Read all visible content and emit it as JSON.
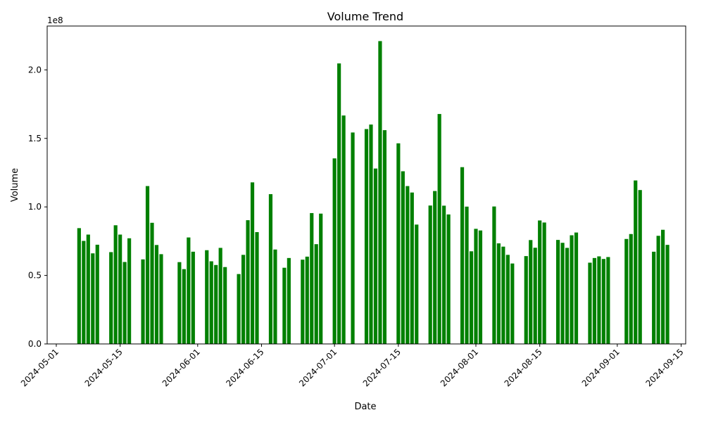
{
  "chart_data": {
    "type": "bar",
    "title": "Volume Trend",
    "xlabel": "Date",
    "ylabel": "Volume",
    "offset_label": "1e8",
    "bar_color": "#008000",
    "ylim": [
      0,
      232000000
    ],
    "xlim": [
      "2024-04-29",
      "2024-09-16"
    ],
    "grid": false,
    "legend": "none",
    "x_ticks": [
      "2024-05-01",
      "2024-05-15",
      "2024-06-01",
      "2024-06-15",
      "2024-07-01",
      "2024-07-15",
      "2024-08-01",
      "2024-08-15",
      "2024-09-01",
      "2024-09-15"
    ],
    "y_ticks": [
      {
        "value": 0,
        "label": "0.0"
      },
      {
        "value": 50000000,
        "label": "0.5"
      },
      {
        "value": 100000000,
        "label": "1.0"
      },
      {
        "value": 150000000,
        "label": "1.5"
      },
      {
        "value": 200000000,
        "label": "2.0"
      }
    ],
    "series": [
      {
        "x": [
          "2024-05-06",
          "2024-05-07",
          "2024-05-08",
          "2024-05-09",
          "2024-05-10",
          "2024-05-13",
          "2024-05-14",
          "2024-05-15",
          "2024-05-16",
          "2024-05-17",
          "2024-05-20",
          "2024-05-21",
          "2024-05-22",
          "2024-05-23",
          "2024-05-24",
          "2024-05-28",
          "2024-05-29",
          "2024-05-30",
          "2024-05-31",
          "2024-06-03",
          "2024-06-04",
          "2024-06-05",
          "2024-06-06",
          "2024-06-07",
          "2024-06-10",
          "2024-06-11",
          "2024-06-12",
          "2024-06-13",
          "2024-06-14",
          "2024-06-17",
          "2024-06-18",
          "2024-06-20",
          "2024-06-21",
          "2024-06-24",
          "2024-06-25",
          "2024-06-26",
          "2024-06-27",
          "2024-06-28",
          "2024-07-01",
          "2024-07-02",
          "2024-07-03",
          "2024-07-05",
          "2024-07-08",
          "2024-07-09",
          "2024-07-10",
          "2024-07-11",
          "2024-07-12",
          "2024-07-15",
          "2024-07-16",
          "2024-07-17",
          "2024-07-18",
          "2024-07-19",
          "2024-07-22",
          "2024-07-23",
          "2024-07-24",
          "2024-07-25",
          "2024-07-26",
          "2024-07-29",
          "2024-07-30",
          "2024-07-31",
          "2024-08-01",
          "2024-08-02",
          "2024-08-05",
          "2024-08-06",
          "2024-08-07",
          "2024-08-08",
          "2024-08-09",
          "2024-08-12",
          "2024-08-13",
          "2024-08-14",
          "2024-08-15",
          "2024-08-16",
          "2024-08-19",
          "2024-08-20",
          "2024-08-21",
          "2024-08-22",
          "2024-08-23",
          "2024-08-26",
          "2024-08-27",
          "2024-08-28",
          "2024-08-29",
          "2024-08-30",
          "2024-09-03",
          "2024-09-04",
          "2024-09-05",
          "2024-09-06",
          "2024-09-09",
          "2024-09-10",
          "2024-09-11",
          "2024-09-12"
        ],
        "values": [
          84500000,
          75200000,
          79800000,
          66100000,
          72400000,
          67000000,
          86600000,
          79800000,
          59800000,
          77100000,
          61700000,
          115200000,
          88400000,
          72200000,
          65500000,
          59700000,
          54600000,
          77700000,
          67300000,
          68400000,
          60300000,
          57600000,
          70100000,
          56100000,
          51000000,
          65000000,
          90300000,
          117900000,
          81600000,
          109300000,
          68900000,
          55600000,
          62700000,
          61500000,
          63700000,
          95500000,
          72800000,
          95100000,
          135400000,
          204700000,
          166700000,
          154300000,
          156800000,
          160100000,
          128000000,
          221000000,
          156000000,
          146400000,
          126000000,
          115200000,
          110500000,
          87100000,
          101000000,
          111600000,
          167800000,
          100900000,
          94500000,
          129000000,
          100200000,
          67600000,
          84000000,
          82800000,
          100300000,
          73400000,
          71000000,
          65000000,
          58700000,
          64100000,
          75800000,
          70200000,
          90100000,
          88600000,
          75900000,
          73800000,
          70100000,
          79300000,
          81300000,
          59300000,
          62700000,
          63900000,
          62000000,
          63400000,
          76600000,
          80200000,
          119300000,
          112300000,
          67300000,
          78900000,
          83300000,
          72300000
        ]
      }
    ]
  }
}
